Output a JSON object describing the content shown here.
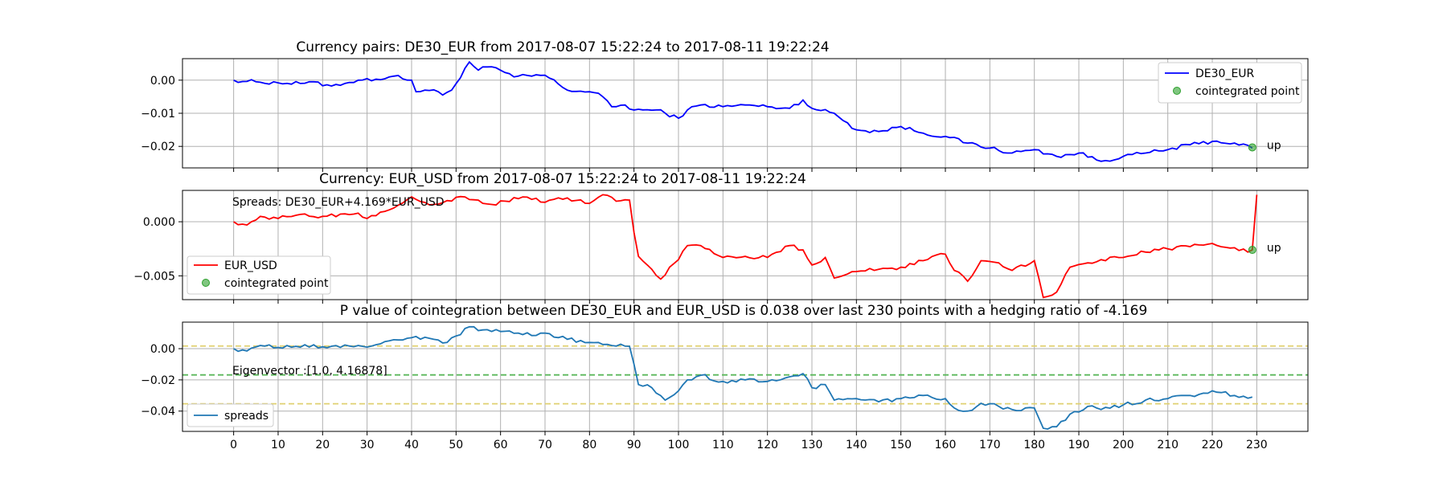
{
  "chart_data": [
    {
      "type": "line",
      "title": "Currency pairs: DE30_EUR from 2017-08-07 15:22:24 to 2017-08-11 19:22:24",
      "ylim": [
        -0.0265,
        0.0065
      ],
      "yticks": [
        0.0,
        -0.01,
        -0.02
      ],
      "ytick_labels": [
        "0.00",
        "−0.01",
        "−0.02"
      ],
      "xlim": [
        -11.5,
        241.5
      ],
      "grid": true,
      "legend_position": "top-right",
      "series": [
        {
          "name": "DE30_EUR",
          "color": "#0000ff",
          "anchors": [
            [
              0,
              0.0
            ],
            [
              5,
              -0.0005
            ],
            [
              10,
              -0.0008
            ],
            [
              15,
              -0.001
            ],
            [
              18,
              -0.0005
            ],
            [
              20,
              -0.0017
            ],
            [
              25,
              -0.001
            ],
            [
              28,
              0.0
            ],
            [
              32,
              0.0003
            ],
            [
              36,
              0.0012
            ],
            [
              40,
              0.0
            ],
            [
              41,
              -0.0035
            ],
            [
              43,
              -0.003
            ],
            [
              46,
              -0.0035
            ],
            [
              47,
              -0.0045
            ],
            [
              49,
              -0.003
            ],
            [
              53,
              0.0055
            ],
            [
              55,
              0.003
            ],
            [
              57,
              0.004
            ],
            [
              60,
              0.003
            ],
            [
              63,
              0.001
            ],
            [
              70,
              0.0015
            ],
            [
              75,
              -0.003
            ],
            [
              80,
              -0.0035
            ],
            [
              83,
              -0.005
            ],
            [
              85,
              -0.008
            ],
            [
              88,
              -0.0075
            ],
            [
              90,
              -0.009
            ],
            [
              95,
              -0.009
            ],
            [
              100,
              -0.0115
            ],
            [
              102,
              -0.009
            ],
            [
              105,
              -0.0075
            ],
            [
              110,
              -0.008
            ],
            [
              115,
              -0.0075
            ],
            [
              120,
              -0.008
            ],
            [
              125,
              -0.0085
            ],
            [
              128,
              -0.006
            ],
            [
              130,
              -0.0085
            ],
            [
              135,
              -0.01
            ],
            [
              140,
              -0.015
            ],
            [
              145,
              -0.0155
            ],
            [
              150,
              -0.014
            ],
            [
              155,
              -0.016
            ],
            [
              160,
              -0.017
            ],
            [
              165,
              -0.019
            ],
            [
              170,
              -0.0205
            ],
            [
              175,
              -0.022
            ],
            [
              180,
              -0.021
            ],
            [
              185,
              -0.023
            ],
            [
              190,
              -0.022
            ],
            [
              195,
              -0.0245
            ],
            [
              200,
              -0.023
            ],
            [
              205,
              -0.022
            ],
            [
              210,
              -0.021
            ],
            [
              215,
              -0.0195
            ],
            [
              220,
              -0.0185
            ],
            [
              225,
              -0.019
            ],
            [
              229,
              -0.0205
            ]
          ]
        }
      ],
      "cointegrated_point": {
        "x": 229,
        "y": -0.0203,
        "label": "up",
        "color": "#2ca02c"
      },
      "legend_entries": [
        "DE30_EUR",
        "cointegrated point"
      ]
    },
    {
      "type": "line",
      "title": "Currency: EUR_USD from 2017-08-07 15:22:24 to 2017-08-11 19:22:24",
      "annotation": "Spreads: DE30_EUR+4.169*EUR_USD",
      "ylim": [
        -0.0072,
        0.0029
      ],
      "yticks": [
        0.0,
        -0.005
      ],
      "ytick_labels": [
        "0.000",
        "−0.005"
      ],
      "xlim": [
        -11.5,
        241.5
      ],
      "grid": true,
      "legend_position": "bottom-left",
      "series": [
        {
          "name": "EUR_USD",
          "color": "#ff0000",
          "anchors": [
            [
              0,
              0.0
            ],
            [
              3,
              -0.0003
            ],
            [
              6,
              0.0005
            ],
            [
              10,
              0.0003
            ],
            [
              14,
              0.0006
            ],
            [
              20,
              0.0005
            ],
            [
              28,
              0.0008
            ],
            [
              30,
              0.0003
            ],
            [
              35,
              0.0011
            ],
            [
              40,
              0.0023
            ],
            [
              45,
              0.0016
            ],
            [
              52,
              0.0023
            ],
            [
              58,
              0.0016
            ],
            [
              65,
              0.0023
            ],
            [
              70,
              0.0018
            ],
            [
              75,
              0.0022
            ],
            [
              80,
              0.0017
            ],
            [
              83,
              0.0025
            ],
            [
              86,
              0.0019
            ],
            [
              89,
              0.002
            ],
            [
              90,
              -0.001
            ],
            [
              91,
              -0.0032
            ],
            [
              93,
              -0.004
            ],
            [
              96,
              -0.0053
            ],
            [
              98,
              -0.0042
            ],
            [
              100,
              -0.0035
            ],
            [
              102,
              -0.0022
            ],
            [
              105,
              -0.0022
            ],
            [
              110,
              -0.0033
            ],
            [
              115,
              -0.0032
            ],
            [
              120,
              -0.0033
            ],
            [
              125,
              -0.0022
            ],
            [
              128,
              -0.0026
            ],
            [
              130,
              -0.004
            ],
            [
              133,
              -0.0033
            ],
            [
              135,
              -0.0052
            ],
            [
              140,
              -0.0046
            ],
            [
              145,
              -0.0044
            ],
            [
              150,
              -0.0042
            ],
            [
              155,
              -0.0036
            ],
            [
              160,
              -0.003
            ],
            [
              162,
              -0.0045
            ],
            [
              165,
              -0.0055
            ],
            [
              168,
              -0.0036
            ],
            [
              172,
              -0.0038
            ],
            [
              175,
              -0.0045
            ],
            [
              180,
              -0.0036
            ],
            [
              182,
              -0.007
            ],
            [
              185,
              -0.0065
            ],
            [
              188,
              -0.0042
            ],
            [
              192,
              -0.0038
            ],
            [
              195,
              -0.0035
            ],
            [
              200,
              -0.0033
            ],
            [
              205,
              -0.0028
            ],
            [
              210,
              -0.0025
            ],
            [
              215,
              -0.0023
            ],
            [
              220,
              -0.002
            ],
            [
              225,
              -0.0024
            ],
            [
              228,
              -0.0028
            ],
            [
              229,
              -0.0026
            ],
            [
              230,
              0.0025
            ]
          ]
        }
      ],
      "cointegrated_point": {
        "x": 229,
        "y": -0.0026,
        "label": "up",
        "color": "#2ca02c"
      },
      "legend_entries": [
        "EUR_USD",
        "cointegrated point"
      ]
    },
    {
      "type": "line",
      "title": "P value of cointegration between DE30_EUR and EUR_USD is 0.038 over last 230 points with a hedging ratio of -4.169",
      "annotation": "Eigenvector :[1.0, 4.16878]",
      "ylim": [
        -0.053,
        0.017
      ],
      "yticks": [
        0.0,
        -0.02,
        -0.04
      ],
      "ytick_labels": [
        "0.00",
        "−0.02",
        "−0.04"
      ],
      "xlim": [
        -11.5,
        241.5
      ],
      "xticks": [
        0,
        10,
        20,
        30,
        40,
        50,
        60,
        70,
        80,
        90,
        100,
        110,
        120,
        130,
        140,
        150,
        160,
        170,
        180,
        190,
        200,
        210,
        220,
        230
      ],
      "grid": true,
      "legend_position": "bottom-left",
      "hlines": [
        {
          "y": 0.0017,
          "color": "#e0d070",
          "style": "dashed"
        },
        {
          "y": -0.0168,
          "color": "#5cb85c",
          "style": "dashed"
        },
        {
          "y": -0.0353,
          "color": "#e0d070",
          "style": "dashed"
        }
      ],
      "series": [
        {
          "name": "spreads",
          "color": "#1f77b4",
          "anchors": [
            [
              0,
              0.0
            ],
            [
              3,
              -0.0015
            ],
            [
              6,
              0.002
            ],
            [
              10,
              0.0008
            ],
            [
              14,
              0.0015
            ],
            [
              20,
              0.0012
            ],
            [
              28,
              0.002
            ],
            [
              30,
              0.001
            ],
            [
              35,
              0.005
            ],
            [
              40,
              0.007
            ],
            [
              45,
              0.006
            ],
            [
              48,
              0.004
            ],
            [
              53,
              0.014
            ],
            [
              56,
              0.012
            ],
            [
              60,
              0.011
            ],
            [
              65,
              0.009
            ],
            [
              70,
              0.01
            ],
            [
              75,
              0.006
            ],
            [
              80,
              0.004
            ],
            [
              85,
              0.002
            ],
            [
              89,
              0.0015
            ],
            [
              90,
              -0.01
            ],
            [
              91,
              -0.023
            ],
            [
              94,
              -0.025
            ],
            [
              97,
              -0.033
            ],
            [
              100,
              -0.027
            ],
            [
              102,
              -0.02
            ],
            [
              105,
              -0.017
            ],
            [
              110,
              -0.021
            ],
            [
              115,
              -0.02
            ],
            [
              120,
              -0.021
            ],
            [
              125,
              -0.018
            ],
            [
              128,
              -0.016
            ],
            [
              130,
              -0.025
            ],
            [
              133,
              -0.023
            ],
            [
              135,
              -0.033
            ],
            [
              140,
              -0.032
            ],
            [
              145,
              -0.034
            ],
            [
              150,
              -0.032
            ],
            [
              155,
              -0.03
            ],
            [
              160,
              -0.032
            ],
            [
              162,
              -0.038
            ],
            [
              165,
              -0.04
            ],
            [
              168,
              -0.035
            ],
            [
              172,
              -0.037
            ],
            [
              175,
              -0.039
            ],
            [
              180,
              -0.038
            ],
            [
              182,
              -0.051
            ],
            [
              185,
              -0.05
            ],
            [
              188,
              -0.042
            ],
            [
              192,
              -0.037
            ],
            [
              195,
              -0.039
            ],
            [
              200,
              -0.036
            ],
            [
              205,
              -0.033
            ],
            [
              210,
              -0.032
            ],
            [
              215,
              -0.03
            ],
            [
              220,
              -0.027
            ],
            [
              225,
              -0.03
            ],
            [
              229,
              -0.031
            ]
          ]
        }
      ],
      "legend_entries": [
        "spreads"
      ]
    }
  ]
}
